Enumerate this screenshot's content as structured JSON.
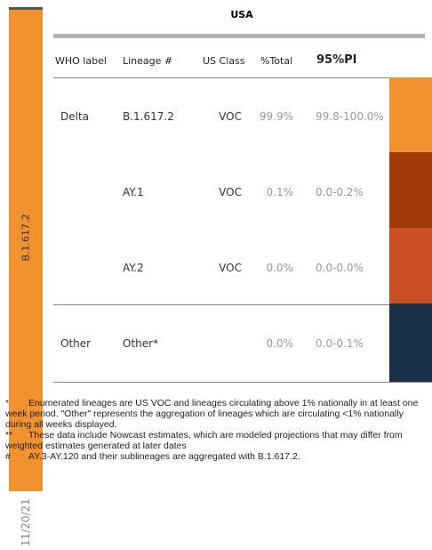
{
  "sidebar": {
    "label": "B.1.617.2",
    "date": "11/20/21",
    "color": "#f0922f"
  },
  "table": {
    "title": "USA",
    "columns": [
      "WHO label",
      "Lineage #",
      "US Class",
      "%Total",
      "95%PI"
    ],
    "rows": [
      [
        "Delta",
        "B.1.617.2",
        "VOC",
        "99.9%",
        "99.8-100.0%"
      ],
      [
        null,
        "AY.1",
        "VOC",
        "0.1%",
        "0.0-0.2%"
      ],
      [
        null,
        "AY.2",
        "VOC",
        "0.0%",
        "0.0-0.0%"
      ],
      [
        "Other",
        "Other*",
        null,
        "0.0%",
        "0.0-0.1%"
      ]
    ],
    "row_colors": [
      "#f0922f",
      "#a33a0a",
      "#c94e24",
      "#1a3047"
    ]
  },
  "footnotes": [
    {
      "marker": "*",
      "text": "Enumerated lineages are US VOC and lineages circulating above 1% nationally in at least one week period. \"Other\" represents the aggregation of lineages which are circulating <1% nationally during all weeks displayed."
    },
    {
      "marker": "**",
      "text": "These data include Nowcast estimates, which are modeled projections that may differ from weighted estimates generated at later dates"
    },
    {
      "marker": "#",
      "text": "AY.3-AY.120 and their sublineages are aggregated with B.1.617.2."
    }
  ]
}
